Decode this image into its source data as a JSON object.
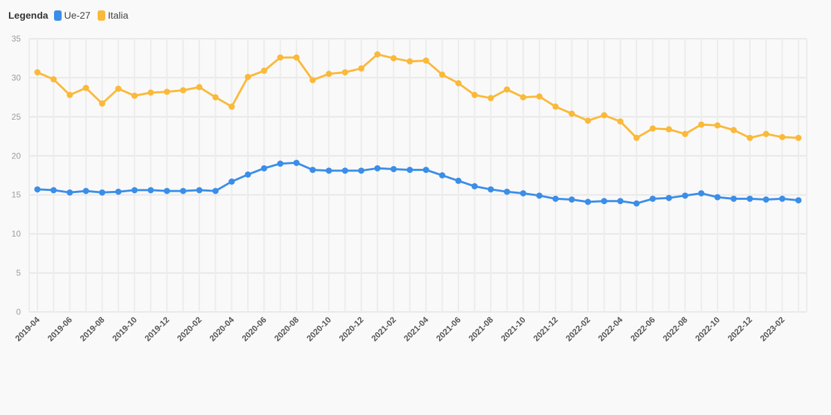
{
  "legend": {
    "title": "Legenda",
    "items": [
      {
        "label": "Ue-27",
        "color": "#3b8ee8"
      },
      {
        "label": "Italia",
        "color": "#fbb93a"
      }
    ]
  },
  "chart_data": {
    "type": "line",
    "x": [
      "2019-04",
      "2019-05",
      "2019-06",
      "2019-07",
      "2019-08",
      "2019-09",
      "2019-10",
      "2019-11",
      "2019-12",
      "2020-01",
      "2020-02",
      "2020-03",
      "2020-04",
      "2020-05",
      "2020-06",
      "2020-07",
      "2020-08",
      "2020-09",
      "2020-10",
      "2020-11",
      "2020-12",
      "2021-01",
      "2021-02",
      "2021-03",
      "2021-04",
      "2021-05",
      "2021-06",
      "2021-07",
      "2021-08",
      "2021-09",
      "2021-10",
      "2021-11",
      "2021-12",
      "2022-01",
      "2022-02",
      "2022-03",
      "2022-04",
      "2022-05",
      "2022-06",
      "2022-07",
      "2022-08",
      "2022-09",
      "2022-10",
      "2022-11",
      "2022-12",
      "2023-01",
      "2023-02",
      "2023-03"
    ],
    "x_tick_labels": [
      "2019-04",
      "2019-06",
      "2019-08",
      "2019-10",
      "2019-12",
      "2020-02",
      "2020-04",
      "2020-06",
      "2020-08",
      "2020-10",
      "2020-12",
      "2021-02",
      "2021-04",
      "2021-06",
      "2021-08",
      "2021-10",
      "2021-12",
      "2022-02",
      "2022-04",
      "2022-06",
      "2022-08",
      "2022-10",
      "2022-12",
      "2023-02"
    ],
    "series": [
      {
        "name": "Ue-27",
        "color": "#3b8ee8",
        "values": [
          15.7,
          15.6,
          15.3,
          15.5,
          15.3,
          15.4,
          15.6,
          15.6,
          15.5,
          15.5,
          15.6,
          15.5,
          16.7,
          17.6,
          18.4,
          19.0,
          19.1,
          18.2,
          18.1,
          18.1,
          18.1,
          18.4,
          18.3,
          18.2,
          18.2,
          17.5,
          16.8,
          16.1,
          15.7,
          15.4,
          15.2,
          14.9,
          14.5,
          14.4,
          14.1,
          14.2,
          14.2,
          13.9,
          14.5,
          14.6,
          14.9,
          15.2,
          14.7,
          14.5,
          14.5,
          14.4,
          14.5,
          14.3
        ]
      },
      {
        "name": "Italia",
        "color": "#fbb93a",
        "values": [
          30.7,
          29.8,
          27.8,
          28.7,
          26.7,
          28.6,
          27.7,
          28.1,
          28.2,
          28.4,
          28.8,
          27.5,
          26.3,
          30.1,
          30.9,
          32.6,
          32.6,
          29.7,
          30.5,
          30.7,
          31.2,
          33.0,
          32.5,
          32.1,
          32.2,
          30.4,
          29.3,
          27.8,
          27.4,
          28.5,
          27.5,
          27.6,
          26.3,
          25.4,
          24.5,
          25.2,
          24.4,
          22.3,
          23.5,
          23.4,
          22.8,
          24.0,
          23.9,
          23.3,
          22.3,
          22.8,
          22.4,
          22.3
        ]
      }
    ],
    "ylim": [
      0,
      35
    ],
    "yticks": [
      0,
      5,
      10,
      15,
      20,
      25,
      30,
      35
    ],
    "grid": true,
    "legend_position": "top-left"
  }
}
